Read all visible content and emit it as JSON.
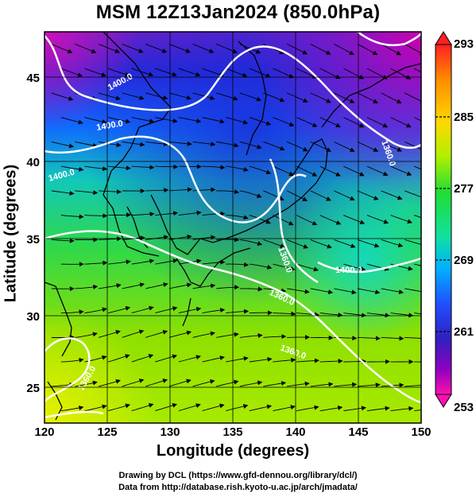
{
  "title": "MSM 12Z13Jan2024 (850.0hPa)",
  "x_axis_title": "Longitude (degrees)",
  "y_axis_title": "Latitude  (degrees)",
  "credits": [
    "Drawing by DCL (https://www.gfd-dennou.org/library/dcl/)",
    "Data from http://database.rish.kyoto-u.ac.jp/arch/jmadata/"
  ],
  "map": {
    "lon_range": [
      120,
      150
    ],
    "lat_range": [
      22.5,
      47.6
    ],
    "lon_ticks": [
      "120",
      "125",
      "130",
      "135",
      "140",
      "145",
      "150"
    ],
    "lat_ticks": [
      "25",
      "30",
      "35",
      "40",
      "45"
    ],
    "contour_labels": [
      "1400.0",
      "1400.0",
      "1400.0",
      "1360.0",
      "1400.0",
      "1360.0",
      "1360.0",
      "1360.0",
      "1360.0"
    ]
  },
  "colorbar": {
    "labels": [
      "293",
      "285",
      "277",
      "269",
      "261",
      "253"
    ],
    "colors": [
      "#ff2020",
      "#ff8c00",
      "#ffd700",
      "#b0f000",
      "#22dd33",
      "#10e0a0",
      "#00b0ff",
      "#2050ff",
      "#3020c0",
      "#9000c0",
      "#ff10b0"
    ]
  }
}
